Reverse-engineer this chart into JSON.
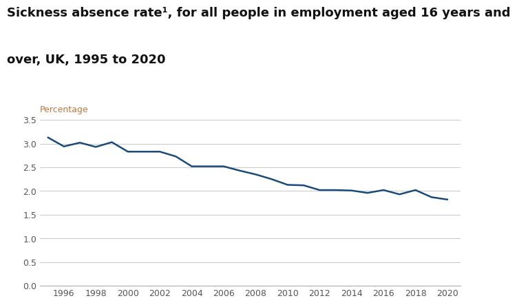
{
  "title_line1": "Sickness absence rate¹, for all people in employment aged 16 years and",
  "title_line2": "over, UK, 1995 to 2020",
  "ylabel": "Percentage",
  "years": [
    1995,
    1996,
    1997,
    1998,
    1999,
    2000,
    2001,
    2002,
    2003,
    2004,
    2005,
    2006,
    2007,
    2008,
    2009,
    2010,
    2011,
    2012,
    2013,
    2014,
    2015,
    2016,
    2017,
    2018,
    2019,
    2020
  ],
  "values": [
    3.13,
    2.94,
    3.02,
    2.93,
    3.03,
    2.83,
    2.83,
    2.83,
    2.73,
    2.52,
    2.52,
    2.52,
    2.43,
    2.35,
    2.25,
    2.13,
    2.12,
    2.02,
    2.02,
    2.01,
    1.96,
    2.02,
    1.93,
    2.02,
    1.87,
    1.82
  ],
  "line_color": "#1a4a7a",
  "line_width": 1.8,
  "grid_color": "#cccccc",
  "background_color": "#ffffff",
  "title_fontsize": 13,
  "ylabel_fontsize": 9,
  "ylabel_color": "#c0783c",
  "tick_label_color": "#555555",
  "ytick_color": "#4472c4",
  "ylim": [
    0,
    3.75
  ],
  "yticks": [
    0.0,
    0.5,
    1.0,
    1.5,
    2.0,
    2.5,
    3.0,
    3.5
  ],
  "xtick_years": [
    1996,
    1998,
    2000,
    2002,
    2004,
    2006,
    2008,
    2010,
    2012,
    2014,
    2016,
    2018,
    2020
  ],
  "title_color": "#111111"
}
